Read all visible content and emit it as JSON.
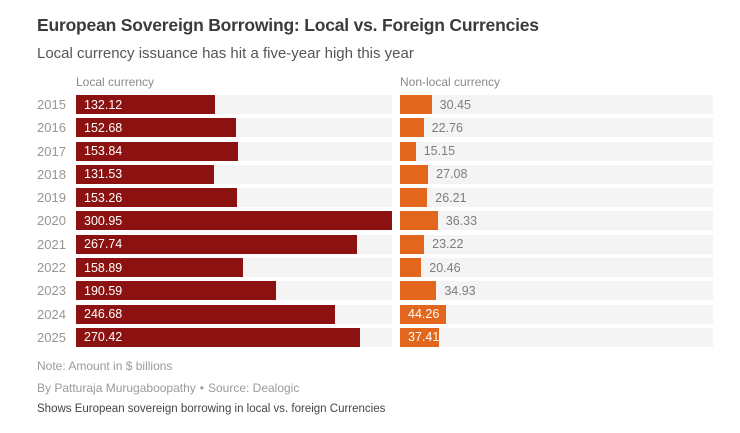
{
  "header": {
    "title": "European Sovereign Borrowing: Local vs. Foreign Currencies",
    "subtitle": "Local currency issuance has hit a five-year high this year"
  },
  "chart_data": {
    "type": "bar",
    "orientation": "horizontal",
    "title": "European Sovereign Borrowing: Local vs. Foreign Currencies",
    "subtitle": "Local currency issuance has hit a five-year high this year",
    "categories": [
      "2015",
      "2016",
      "2017",
      "2018",
      "2019",
      "2020",
      "2021",
      "2022",
      "2023",
      "2024",
      "2025"
    ],
    "series": [
      {
        "name": "Local currency",
        "color": "#8b1210",
        "values": [
          132.12,
          152.68,
          153.84,
          131.53,
          153.26,
          300.95,
          267.74,
          158.89,
          190.59,
          246.68,
          270.42
        ],
        "label_position": [
          "inside",
          "inside",
          "inside",
          "inside",
          "inside",
          "inside",
          "inside",
          "inside",
          "inside",
          "inside",
          "inside"
        ]
      },
      {
        "name": "Non-local currency",
        "color": "#e2661b",
        "values": [
          30.45,
          22.76,
          15.15,
          27.08,
          26.21,
          36.33,
          23.22,
          20.46,
          34.93,
          44.26,
          37.41
        ],
        "label_position": [
          "outside",
          "outside",
          "outside",
          "outside",
          "outside",
          "outside",
          "outside",
          "outside",
          "outside",
          "inside",
          "inside"
        ]
      }
    ],
    "xmax": 300.95,
    "xlabel": "",
    "ylabel": "",
    "grid": false,
    "legend_position": "column-headers",
    "units": "$ billions",
    "track_color": "#f4f4f4"
  },
  "footer": {
    "note": "Note: Amount in $ billions",
    "byline": "By Patturaja Murugaboopathy",
    "separator": "•",
    "source": "Source: Dealogic",
    "description": "Shows European sovereign borrowing in local vs. foreign Currencies"
  }
}
